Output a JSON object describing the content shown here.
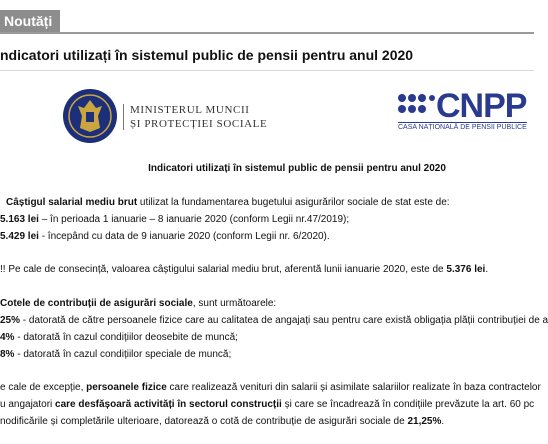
{
  "tab": {
    "label": "Noutăți"
  },
  "page_title": "ndicatori utilizați în sistemul public de pensii pentru anul 2020",
  "ministry": {
    "line1": "MINISTERUL MUNCII",
    "line2": "ȘI PROTECȚIEI SOCIALE"
  },
  "cnpp": {
    "name": "CNPP",
    "sub": "CASA NAȚIONALĂ DE PENSII PUBLICE"
  },
  "doc": {
    "heading": "Indicatori utilizați în sistemul public de pensii pentru anul 2020",
    "p1a": "Câștigul salarial mediu brut",
    "p1b": " utilizat la fundamentarea bugetului asigurărilor sociale de stat este de:",
    "l1a": "5.163 lei",
    "l1b": " – în perioada 1 ianuarie – 8 ianuarie 2020 (conform Legii nr.47/2019);",
    "l2a": "5.429 lei",
    "l2b": " - începând cu data de 9 ianuarie 2020 (conform Legii nr. 6/2020).",
    "n1a": "!! Pe cale de consecință, valoarea câștigului salarial mediu brut, aferentă lunii ianuarie 2020, este de ",
    "n1b": "5.376 lei",
    "n1c": ".",
    "p2a": " Cotele de contribuții de asigurări sociale",
    "p2b": ", sunt următoarele:",
    "c1a": "25%",
    "c1b": " - datorată de către persoanele fizice care au calitatea de angajați sau  pentru care există obligația plății contribuției de a",
    "c2a": "4%",
    "c2b": "  - datorată în cazul condițiilor deosebite de muncă;",
    "c3a": "8%",
    "c3b": "  - datorată în cazul condițiilor speciale de muncă;",
    "e1a": "e cale de excepție, ",
    "e1b": "persoanele fizice",
    "e1c": " care realizează venituri din salarii și asimilate salariilor realizate în baza contractelor",
    "e2a": "u angajatori ",
    "e2b": "care desfășoară activități în sectorul construcții",
    "e2c": " și care se încadrează în condițiile prevăzute la art. 60 pc",
    "e3a": "nodificările și completările ulterioare, datorează o cotă de contribuție de asigurări sociale de ",
    "e3b": "21,25%",
    "e3c": "."
  }
}
